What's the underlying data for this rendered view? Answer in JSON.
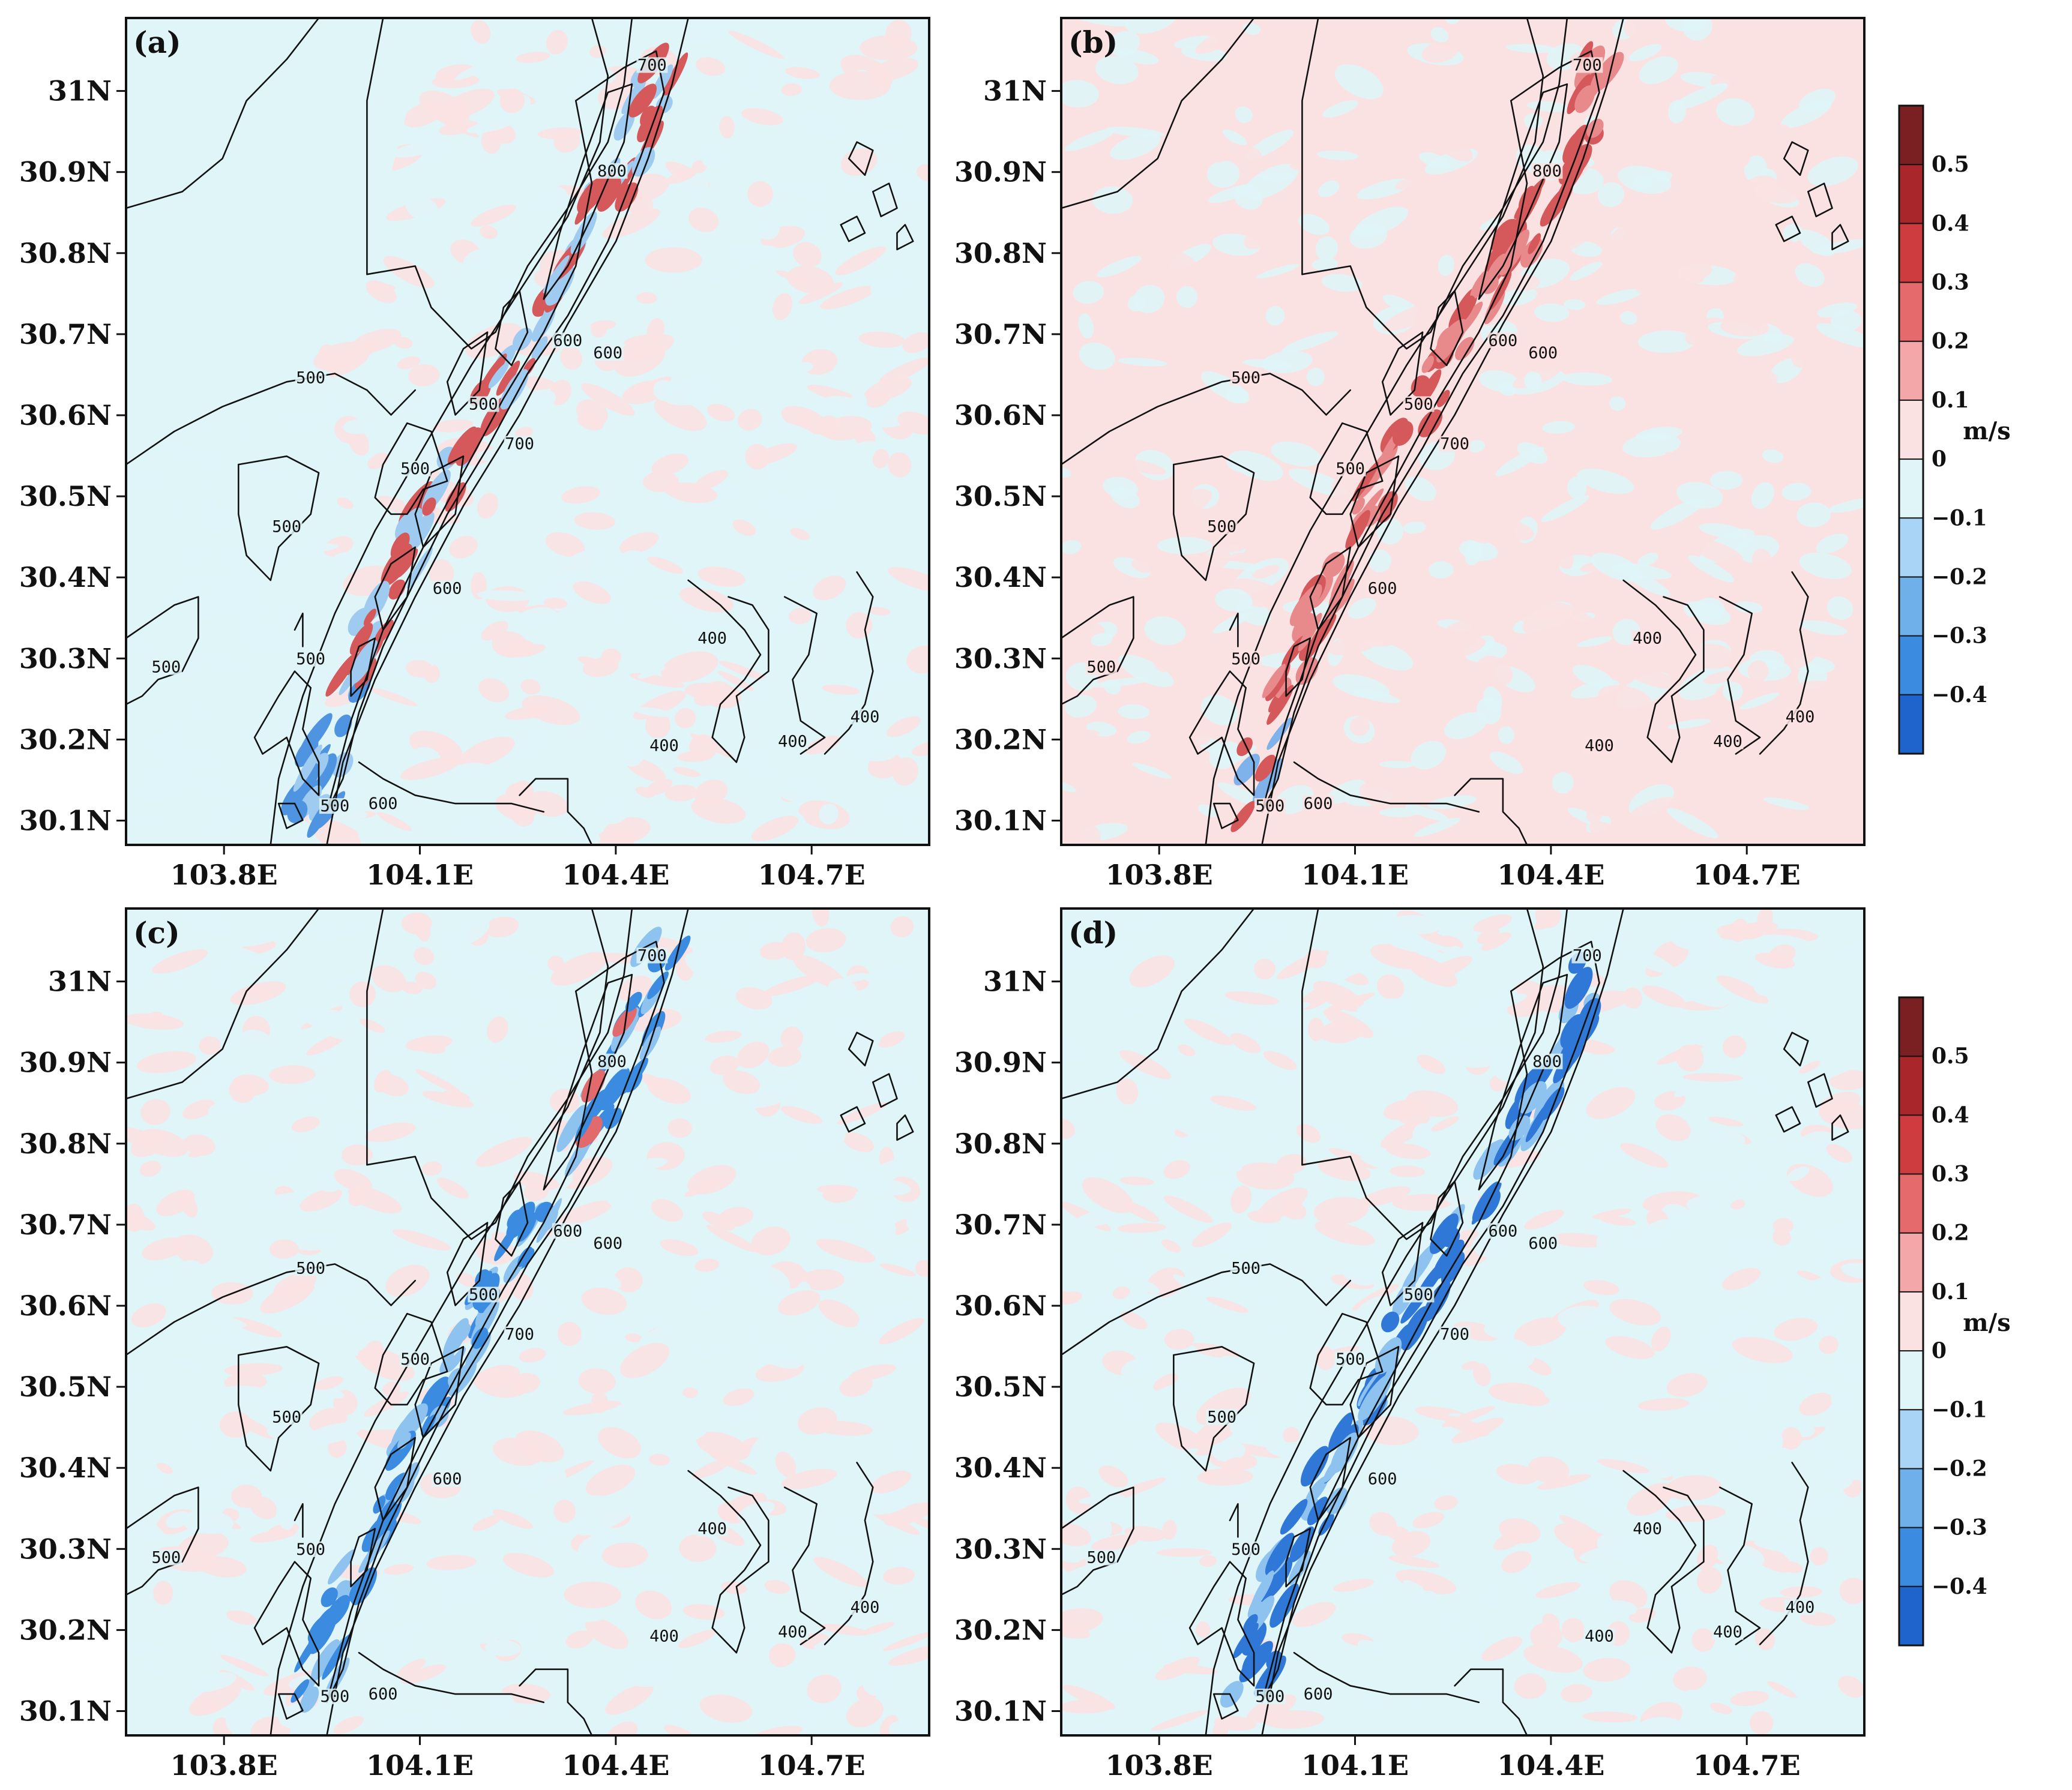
{
  "figure": {
    "panels": [
      {
        "id": "a",
        "label": "(a)",
        "mode": "mixed"
      },
      {
        "id": "b",
        "label": "(b)",
        "mode": "red"
      },
      {
        "id": "c",
        "label": "(c)",
        "mode": "bluered"
      },
      {
        "id": "d",
        "label": "(d)",
        "mode": "blue"
      }
    ],
    "y_ticks": [
      {
        "value": 31.0,
        "label": "31N"
      },
      {
        "value": 30.9,
        "label": "30.9N"
      },
      {
        "value": 30.8,
        "label": "30.8N"
      },
      {
        "value": 30.7,
        "label": "30.7N"
      },
      {
        "value": 30.6,
        "label": "30.6N"
      },
      {
        "value": 30.5,
        "label": "30.5N"
      },
      {
        "value": 30.4,
        "label": "30.4N"
      },
      {
        "value": 30.3,
        "label": "30.3N"
      },
      {
        "value": 30.2,
        "label": "30.2N"
      },
      {
        "value": 30.1,
        "label": "30.1N"
      }
    ],
    "x_ticks": [
      {
        "value": 103.8,
        "label": "103.8E"
      },
      {
        "value": 104.1,
        "label": "104.1E"
      },
      {
        "value": 104.4,
        "label": "104.4E"
      },
      {
        "value": 104.7,
        "label": "104.7E"
      }
    ],
    "lat_range": [
      30.07,
      31.09
    ],
    "lon_range": [
      103.65,
      104.88
    ],
    "colorbar": {
      "unit": "m/s",
      "labels": [
        "0.5",
        "0.4",
        "0.3",
        "0.2",
        "0.1",
        "0",
        "−0.1",
        "−0.2",
        "−0.3",
        "−0.4"
      ],
      "colors": [
        "#7a1f22",
        "#a9262b",
        "#cf3c40",
        "#e46a6c",
        "#f4a7a8",
        "#fbe2e2",
        "#dff5f8",
        "#a9d4f5",
        "#6fb0ea",
        "#3b8be0",
        "#1f64cc"
      ]
    },
    "contour_labels": [
      "700",
      "800",
      "600",
      "600",
      "500",
      "500",
      "700",
      "500",
      "500",
      "600",
      "400",
      "500",
      "500",
      "400",
      "400",
      "400",
      "500",
      "600"
    ],
    "colors": {
      "background_pink": "#fbe2e2",
      "background_cyan": "#dff5f8",
      "contour_line": "#111111"
    }
  }
}
